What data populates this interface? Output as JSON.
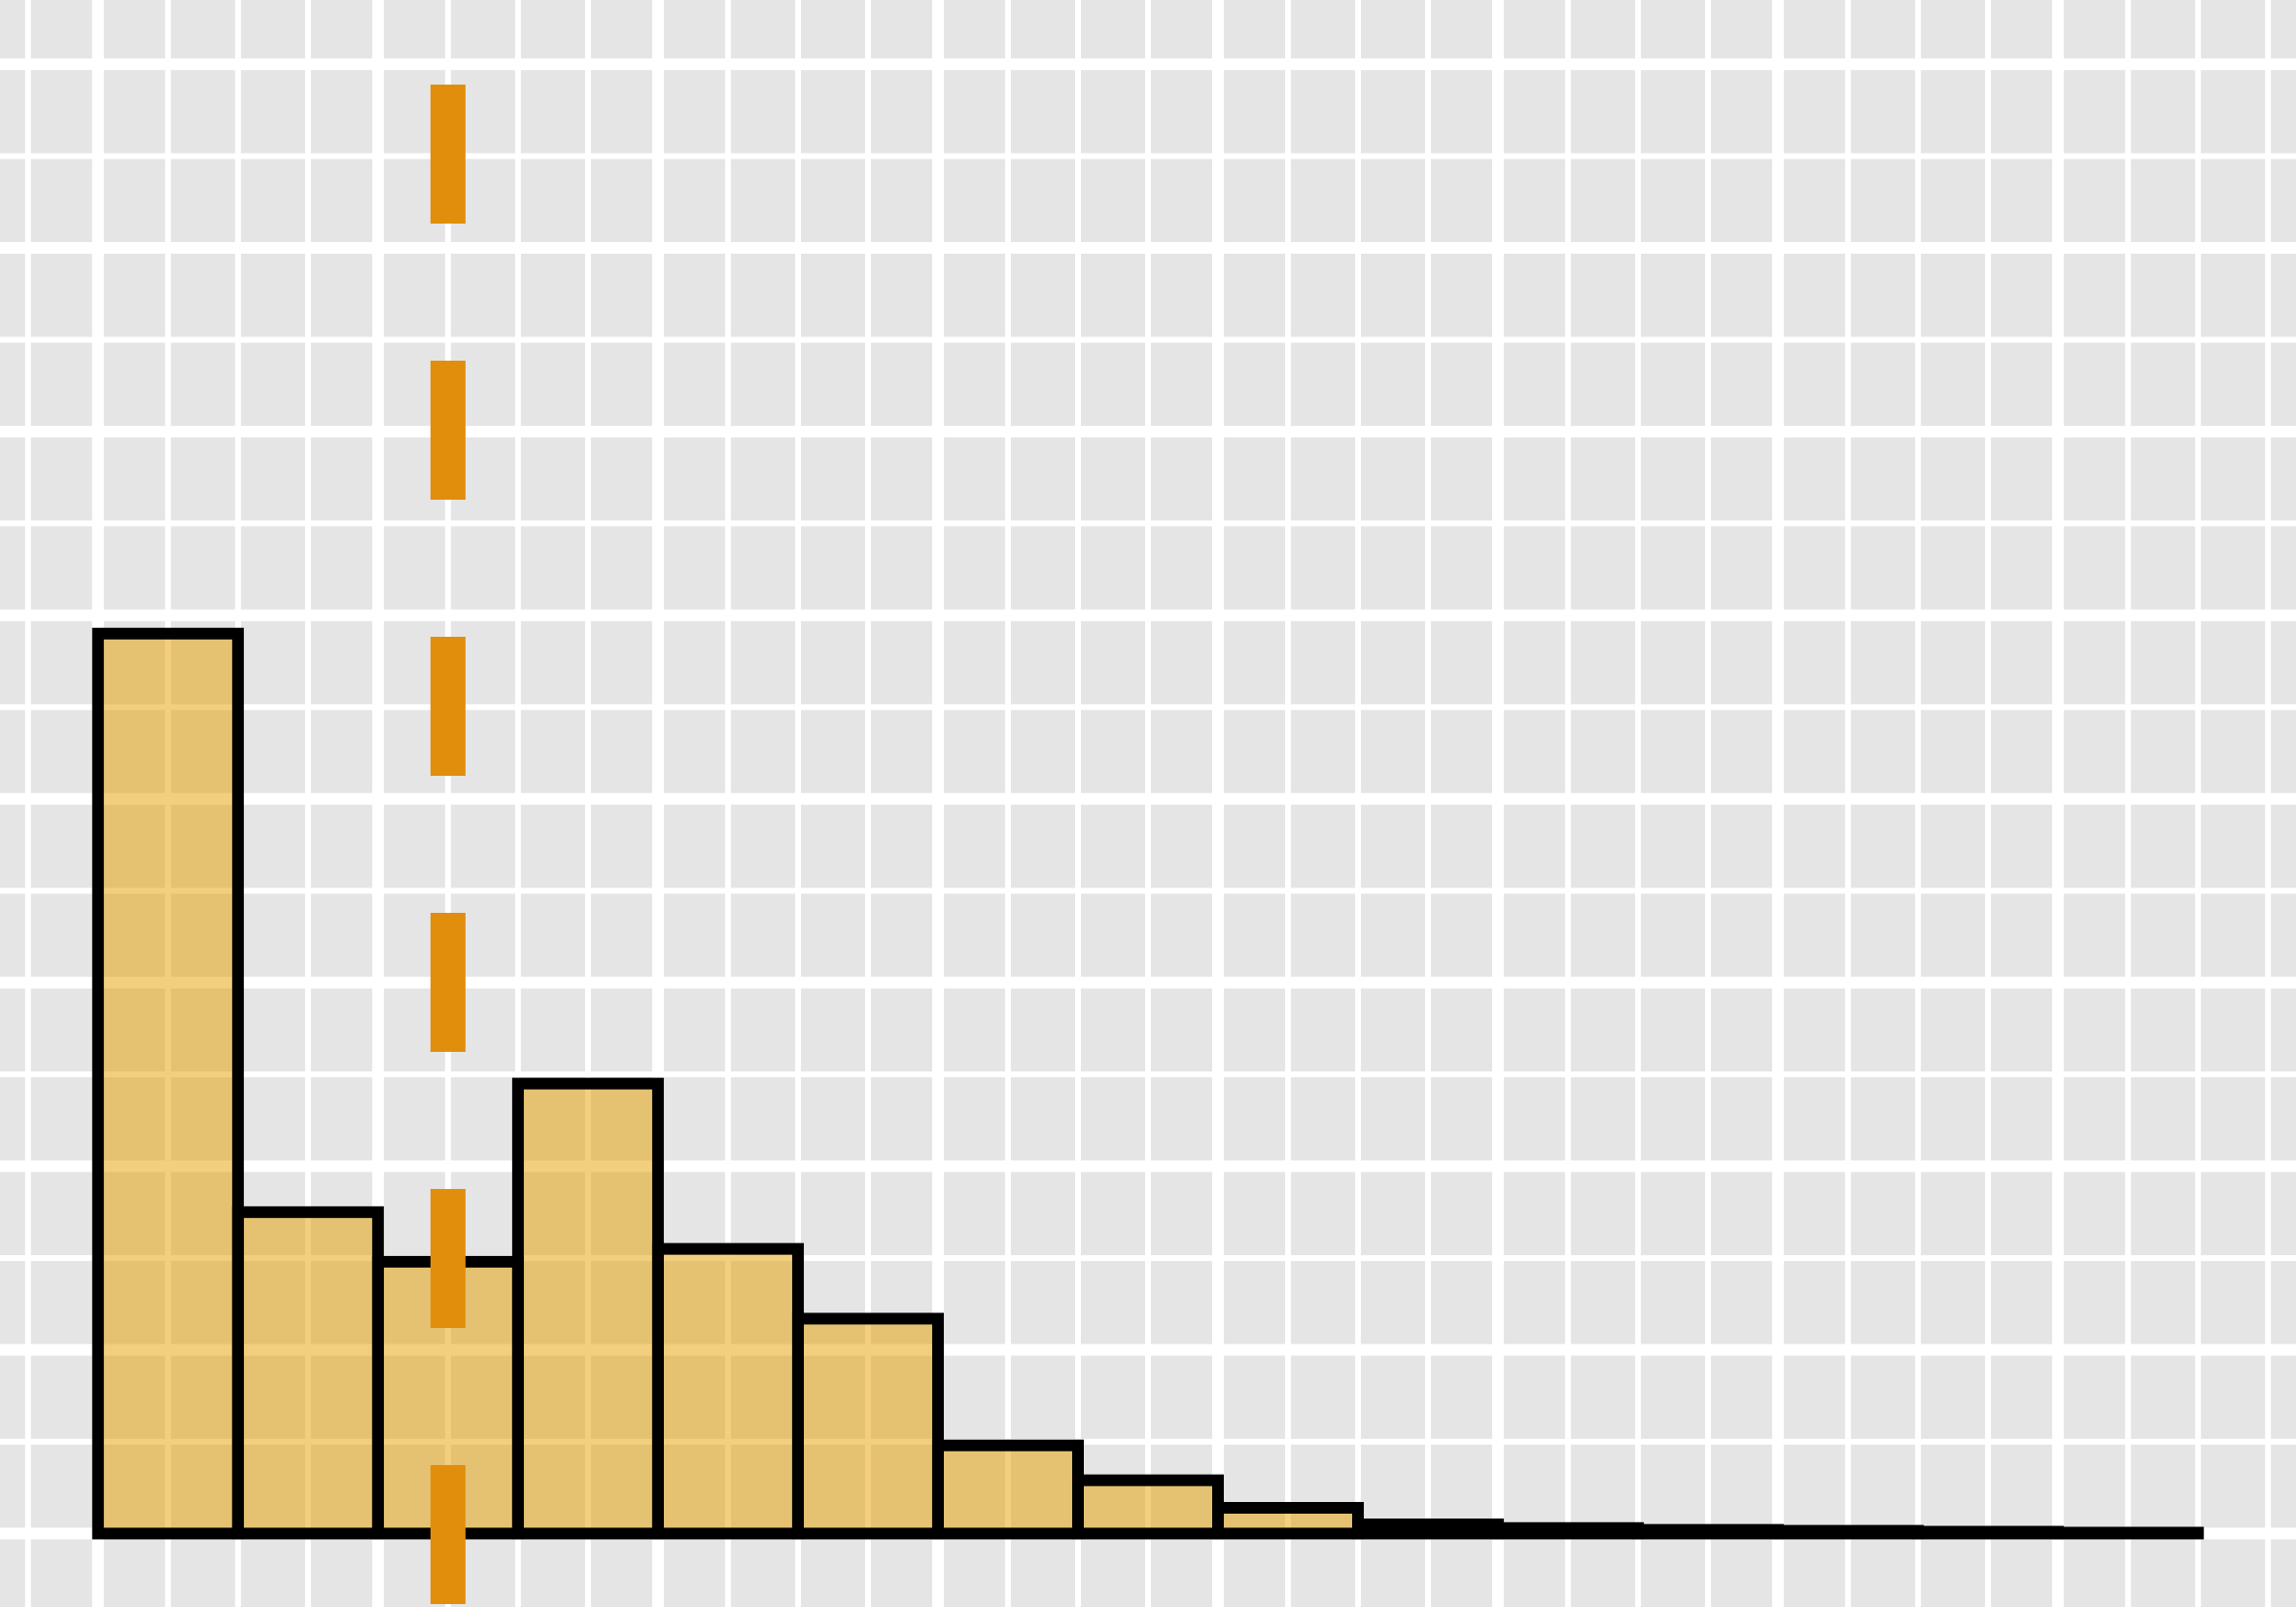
{
  "chart_data": {
    "type": "bar",
    "title": "",
    "xlabel": "",
    "ylabel": "",
    "grid": true,
    "bin_edges": [
      0,
      1,
      2,
      3,
      4,
      5,
      6,
      7,
      8,
      9,
      10,
      11,
      12,
      13,
      14,
      15
    ],
    "values": [
      4.9,
      1.75,
      1.48,
      2.45,
      1.55,
      1.17,
      0.48,
      0.29,
      0.14,
      0.05,
      0.03,
      0.02,
      0.015,
      0.01,
      0.005
    ],
    "xlim": [
      -0.7,
      15.7
    ],
    "ylim": [
      -0.4,
      8.35
    ],
    "reference_line": {
      "x": 2.5,
      "style": "dashed"
    },
    "colors": {
      "background": "#e5e5e5",
      "grid": "#ffffff",
      "bar_fill": "#e69f00",
      "bar_fill_opacity": 0.5,
      "bar_outline": "#000000",
      "reference_line": "#e08e0b"
    }
  }
}
